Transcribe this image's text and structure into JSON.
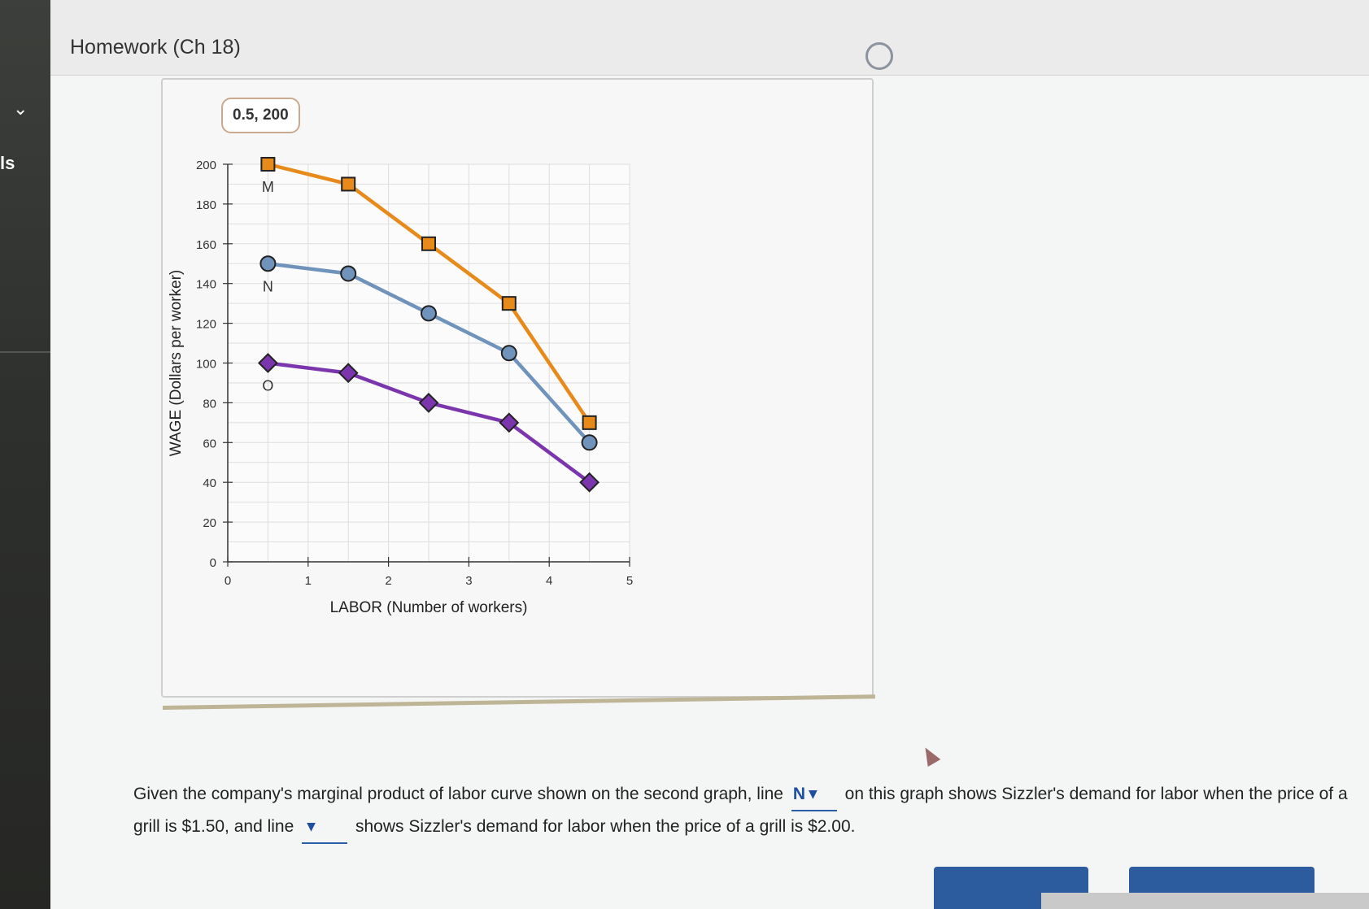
{
  "header": {
    "title": "Homework (Ch 18)"
  },
  "sidebar": {
    "partial_text": "ls"
  },
  "tooltip": {
    "coords": "0.5, 200"
  },
  "chart_data": {
    "type": "line",
    "xlabel": "LABOR (Number of workers)",
    "ylabel": "WAGE (Dollars per worker)",
    "xlim": [
      0,
      5
    ],
    "ylim": [
      0,
      200
    ],
    "x_ticks": [
      "0",
      "1",
      "2",
      "3",
      "4",
      "5"
    ],
    "y_ticks": [
      "0",
      "20",
      "40",
      "60",
      "80",
      "100",
      "120",
      "140",
      "160",
      "180",
      "200"
    ],
    "grid": true,
    "x": [
      0.5,
      1.5,
      2.5,
      3.5,
      4.5
    ],
    "series": [
      {
        "name": "M",
        "marker": "square",
        "color": "#e88a1a",
        "values": [
          200,
          190,
          160,
          130,
          70
        ]
      },
      {
        "name": "N",
        "marker": "circle",
        "color": "#6f93bb",
        "values": [
          150,
          145,
          125,
          105,
          60
        ]
      },
      {
        "name": "O",
        "marker": "diamond",
        "color": "#7b35ad",
        "values": [
          100,
          95,
          80,
          70,
          40
        ]
      }
    ]
  },
  "question": {
    "part1": "Given the company's marginal product of labor curve shown on the second graph, line",
    "dropdown1_value": "N",
    "part2": "on this graph shows Sizzler's demand for labor when the price of a grill is $1.50, and line",
    "dropdown2_value": "",
    "part3": "shows Sizzler's demand for labor when the price of a grill is $2.00."
  }
}
